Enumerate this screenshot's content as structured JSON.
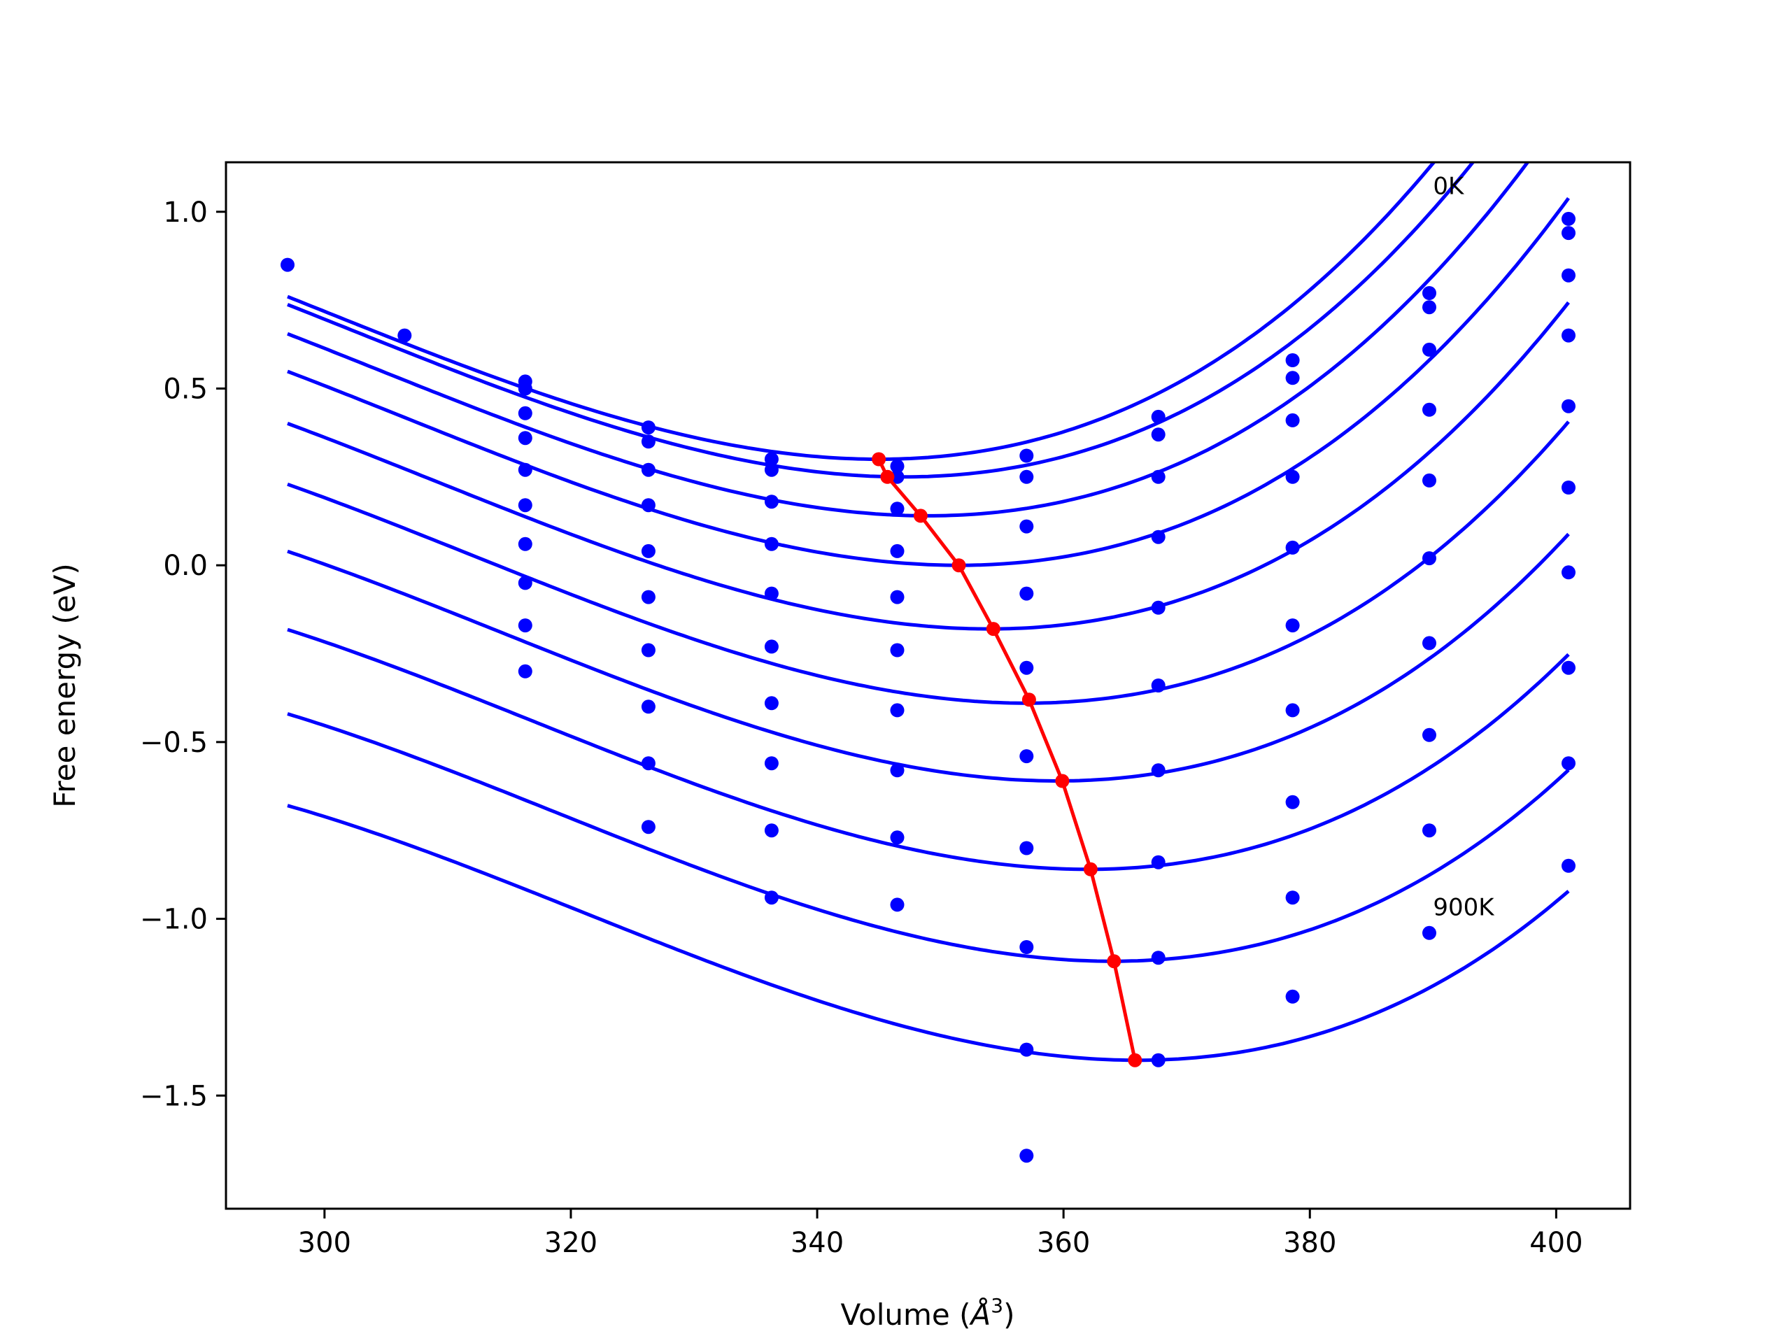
{
  "chart_data": {
    "type": "line",
    "title": "",
    "xlabel_prefix": "Volume (",
    "xlabel_unit": "Å",
    "xlabel_exp": "3",
    "xlabel_suffix": ")",
    "ylabel": "Free energy (eV)",
    "xlim": [
      292,
      406
    ],
    "ylim": [
      -1.82,
      1.14
    ],
    "xticks": [
      300,
      320,
      340,
      360,
      380,
      400
    ],
    "xtick_labels": [
      "300",
      "320",
      "340",
      "360",
      "380",
      "400"
    ],
    "yticks": [
      1.0,
      0.5,
      0.0,
      -0.5,
      -1.0,
      -1.5
    ],
    "ytick_labels": [
      "1.0",
      "0.5",
      "0.0",
      "−0.5",
      "−1.0",
      "−1.5"
    ],
    "grid": false,
    "annotations": [
      {
        "text": "0K",
        "x": 390,
        "y": 1.05
      },
      {
        "text": "900K",
        "x": 390,
        "y": -0.99
      }
    ],
    "colors": {
      "fit": "#0000ff",
      "points": "#0000ff",
      "min_line": "#ff0000"
    },
    "curve_x_range": [
      297,
      401
    ],
    "fit_curves": [
      {
        "vmin": 345.0,
        "fmin": 0.3,
        "k": 0.00031,
        "c": 2.3e-06
      },
      {
        "vmin": 347.0,
        "fmin": 0.25,
        "k": 0.00031,
        "c": 2.3e-06
      },
      {
        "vmin": 349.0,
        "fmin": 0.14,
        "k": 0.00031,
        "c": 2.3e-06
      },
      {
        "vmin": 351.5,
        "fmin": 0.0,
        "k": 0.00031,
        "c": 2.3e-06
      },
      {
        "vmin": 354.0,
        "fmin": -0.18,
        "k": 0.00031,
        "c": 2.3e-06
      },
      {
        "vmin": 357.0,
        "fmin": -0.39,
        "k": 0.00031,
        "c": 2.3e-06
      },
      {
        "vmin": 359.5,
        "fmin": -0.61,
        "k": 0.00031,
        "c": 2.3e-06
      },
      {
        "vmin": 362.0,
        "fmin": -0.86,
        "k": 0.00031,
        "c": 2.3e-06
      },
      {
        "vmin": 364.0,
        "fmin": -1.12,
        "k": 0.00031,
        "c": 2.3e-06
      },
      {
        "vmin": 366.0,
        "fmin": -1.4,
        "k": 0.00031,
        "c": 2.3e-06
      }
    ],
    "points": [
      [
        297.0,
        0.85
      ],
      [
        306.5,
        0.65
      ],
      [
        316.3,
        0.52
      ],
      [
        316.3,
        0.5
      ],
      [
        316.3,
        0.43
      ],
      [
        316.3,
        0.36
      ],
      [
        316.3,
        0.27
      ],
      [
        316.3,
        0.17
      ],
      [
        316.3,
        0.06
      ],
      [
        316.3,
        -0.05
      ],
      [
        316.3,
        -0.17
      ],
      [
        316.3,
        -0.3
      ],
      [
        326.3,
        0.39
      ],
      [
        326.3,
        0.35
      ],
      [
        326.3,
        0.27
      ],
      [
        326.3,
        0.17
      ],
      [
        326.3,
        0.04
      ],
      [
        326.3,
        -0.09
      ],
      [
        326.3,
        -0.24
      ],
      [
        326.3,
        -0.4
      ],
      [
        326.3,
        -0.56
      ],
      [
        326.3,
        -0.74
      ],
      [
        336.3,
        0.3
      ],
      [
        336.3,
        0.27
      ],
      [
        336.3,
        0.18
      ],
      [
        336.3,
        0.06
      ],
      [
        336.3,
        -0.08
      ],
      [
        336.3,
        -0.23
      ],
      [
        336.3,
        -0.39
      ],
      [
        336.3,
        -0.56
      ],
      [
        336.3,
        -0.75
      ],
      [
        336.3,
        -0.94
      ],
      [
        346.5,
        0.28
      ],
      [
        346.5,
        0.25
      ],
      [
        346.5,
        0.16
      ],
      [
        346.5,
        0.04
      ],
      [
        346.5,
        -0.09
      ],
      [
        346.5,
        -0.24
      ],
      [
        346.5,
        -0.41
      ],
      [
        346.5,
        -0.58
      ],
      [
        346.5,
        -0.77
      ],
      [
        346.5,
        -0.96
      ],
      [
        357.0,
        0.31
      ],
      [
        357.0,
        0.25
      ],
      [
        357.0,
        0.11
      ],
      [
        357.0,
        -0.08
      ],
      [
        357.0,
        -0.29
      ],
      [
        357.0,
        -0.54
      ],
      [
        357.0,
        -0.8
      ],
      [
        357.0,
        -1.08
      ],
      [
        357.0,
        -1.37
      ],
      [
        357.0,
        -1.67
      ],
      [
        367.7,
        0.42
      ],
      [
        367.7,
        0.37
      ],
      [
        367.7,
        0.25
      ],
      [
        367.7,
        0.08
      ],
      [
        367.7,
        -0.12
      ],
      [
        367.7,
        -0.34
      ],
      [
        367.7,
        -0.58
      ],
      [
        367.7,
        -0.84
      ],
      [
        367.7,
        -1.11
      ],
      [
        367.7,
        -1.4
      ],
      [
        378.6,
        0.58
      ],
      [
        378.6,
        0.53
      ],
      [
        378.6,
        0.41
      ],
      [
        378.6,
        0.25
      ],
      [
        378.6,
        0.05
      ],
      [
        378.6,
        -0.17
      ],
      [
        378.6,
        -0.41
      ],
      [
        378.6,
        -0.67
      ],
      [
        378.6,
        -0.94
      ],
      [
        378.6,
        -1.22
      ],
      [
        389.7,
        0.77
      ],
      [
        389.7,
        0.73
      ],
      [
        389.7,
        0.61
      ],
      [
        389.7,
        0.44
      ],
      [
        389.7,
        0.24
      ],
      [
        389.7,
        0.02
      ],
      [
        389.7,
        -0.22
      ],
      [
        389.7,
        -0.48
      ],
      [
        389.7,
        -0.75
      ],
      [
        389.7,
        -1.04
      ],
      [
        401.0,
        0.98
      ],
      [
        401.0,
        0.94
      ],
      [
        401.0,
        0.82
      ],
      [
        401.0,
        0.65
      ],
      [
        401.0,
        0.45
      ],
      [
        401.0,
        0.22
      ],
      [
        401.0,
        -0.02
      ],
      [
        401.0,
        -0.29
      ],
      [
        401.0,
        -0.56
      ],
      [
        401.0,
        -0.85
      ]
    ],
    "min_line": {
      "x": [
        345.0,
        345.7,
        348.4,
        351.5,
        354.3,
        357.2,
        359.9,
        362.2,
        364.1,
        365.8
      ],
      "y": [
        0.3,
        0.25,
        0.14,
        0.0,
        -0.18,
        -0.38,
        -0.61,
        -0.86,
        -1.12,
        -1.4
      ]
    }
  }
}
